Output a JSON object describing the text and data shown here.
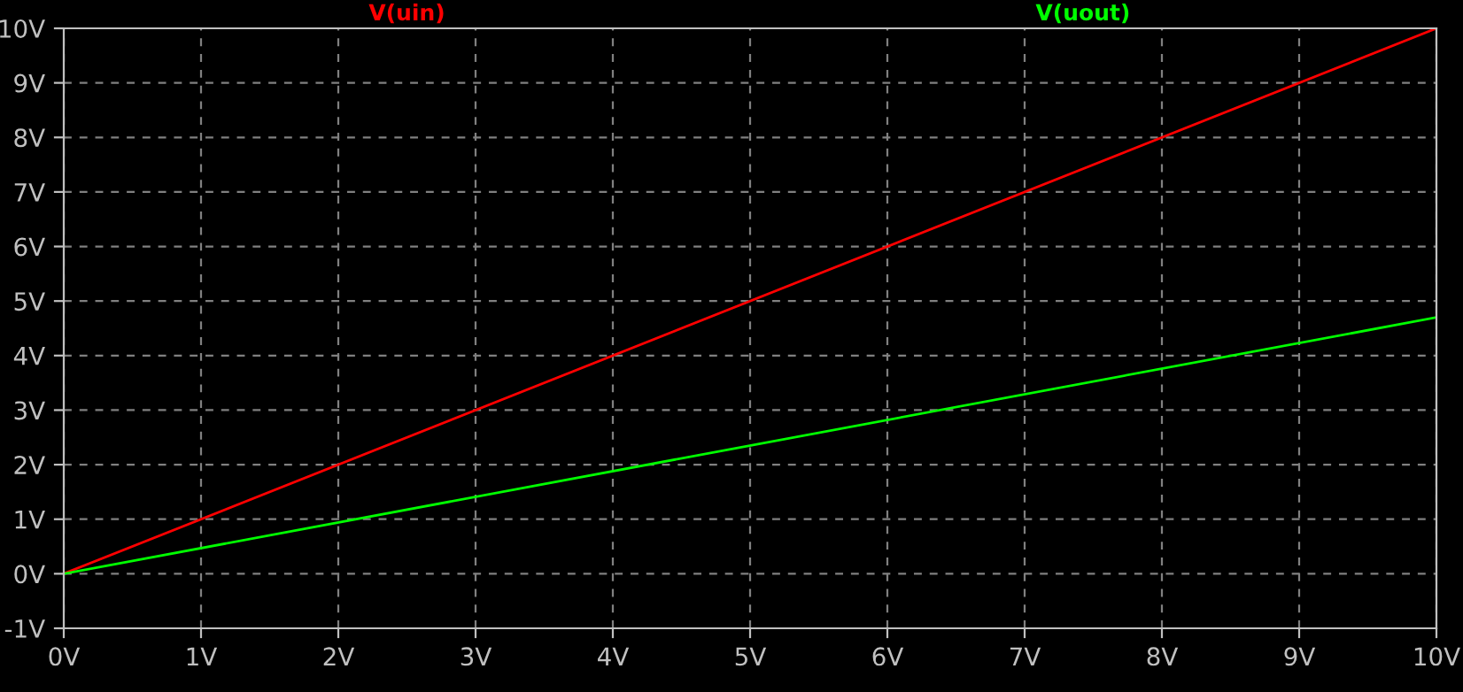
{
  "chart_data": {
    "type": "line",
    "x": [
      0,
      10
    ],
    "series": [
      {
        "name": "V(uin)",
        "color": "#ff0000",
        "values": [
          0,
          10
        ]
      },
      {
        "name": "V(uout)",
        "color": "#00ff00",
        "values": [
          0,
          4.7
        ]
      }
    ],
    "xlim": [
      0,
      10
    ],
    "ylim": [
      -1,
      10
    ],
    "xticks": [
      {
        "value": 0,
        "label": "0V"
      },
      {
        "value": 1,
        "label": "1V"
      },
      {
        "value": 2,
        "label": "2V"
      },
      {
        "value": 3,
        "label": "3V"
      },
      {
        "value": 4,
        "label": "4V"
      },
      {
        "value": 5,
        "label": "5V"
      },
      {
        "value": 6,
        "label": "6V"
      },
      {
        "value": 7,
        "label": "7V"
      },
      {
        "value": 8,
        "label": "8V"
      },
      {
        "value": 9,
        "label": "9V"
      },
      {
        "value": 10,
        "label": "10V"
      }
    ],
    "yticks": [
      {
        "value": -1,
        "label": "-1V"
      },
      {
        "value": 0,
        "label": "0V"
      },
      {
        "value": 1,
        "label": "1V"
      },
      {
        "value": 2,
        "label": "2V"
      },
      {
        "value": 3,
        "label": "3V"
      },
      {
        "value": 4,
        "label": "4V"
      },
      {
        "value": 5,
        "label": "5V"
      },
      {
        "value": 6,
        "label": "6V"
      },
      {
        "value": 7,
        "label": "7V"
      },
      {
        "value": 8,
        "label": "8V"
      },
      {
        "value": 9,
        "label": "9V"
      },
      {
        "value": 10,
        "label": "10V"
      }
    ],
    "grid": true,
    "legend": "top",
    "marker": "none",
    "line_style": "solid"
  }
}
